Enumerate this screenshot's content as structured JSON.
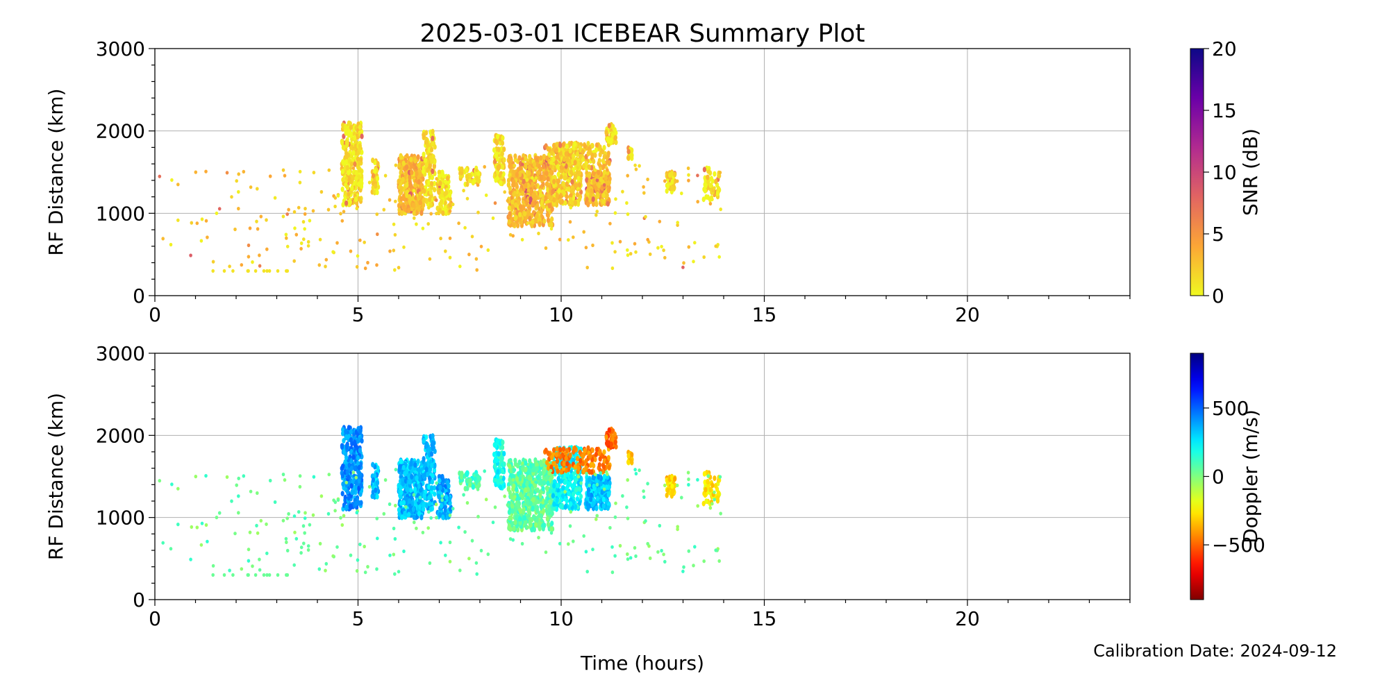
{
  "title": "2025-03-01 ICEBEAR Summary Plot",
  "footer": "Calibration Date: 2024-09-12",
  "chart_data": [
    {
      "type": "scatter",
      "panel": "snr",
      "title": "2025-03-01 ICEBEAR Summary Plot",
      "xlabel": "",
      "ylabel": "RF Distance (km)",
      "xlim": [
        0,
        24
      ],
      "ylim": [
        0,
        3000
      ],
      "xticks": [
        "0",
        "5",
        "10",
        "15",
        "20"
      ],
      "yticks": [
        "0",
        "1000",
        "2000",
        "3000"
      ],
      "grid": true,
      "colorbar": {
        "label": "SNR (dB)",
        "range": [
          0,
          20
        ],
        "ticks": [
          "0",
          "5",
          "10",
          "15",
          "20"
        ],
        "colormap": "plasma_r"
      }
    },
    {
      "type": "scatter",
      "panel": "doppler",
      "xlabel": "Time (hours)",
      "ylabel": "RF Distance (km)",
      "xlim": [
        0,
        24
      ],
      "ylim": [
        0,
        3000
      ],
      "xticks": [
        "0",
        "5",
        "10",
        "15",
        "20"
      ],
      "yticks": [
        "0",
        "1000",
        "2000",
        "3000"
      ],
      "grid": true,
      "colorbar": {
        "label": "Doppler (m/s)",
        "range": [
          -900,
          900
        ],
        "ticks": [
          "−500",
          "0",
          "500"
        ],
        "tick_values": [
          -500,
          0,
          500
        ],
        "colormap": "jet_r"
      }
    }
  ],
  "clusters": [
    {
      "t": [
        4.6,
        5.1
      ],
      "r": [
        1100,
        2100
      ],
      "n": 260,
      "snr": 1,
      "doppler": 420
    },
    {
      "t": [
        5.35,
        5.5
      ],
      "r": [
        1250,
        1650
      ],
      "n": 40,
      "snr": 1,
      "doppler": 330
    },
    {
      "t": [
        6.0,
        6.6
      ],
      "r": [
        1000,
        1700
      ],
      "n": 320,
      "snr": 3,
      "doppler": 330
    },
    {
      "t": [
        6.6,
        6.9
      ],
      "r": [
        1100,
        2000
      ],
      "n": 120,
      "snr": 1,
      "doppler": 330
    },
    {
      "t": [
        6.95,
        7.3
      ],
      "r": [
        1000,
        1500
      ],
      "n": 90,
      "snr": 1,
      "doppler": 380
    },
    {
      "t": [
        7.5,
        8.0
      ],
      "r": [
        1350,
        1550
      ],
      "n": 50,
      "snr": 1,
      "doppler": 100
    },
    {
      "t": [
        8.35,
        8.6
      ],
      "r": [
        1350,
        1950
      ],
      "n": 80,
      "snr": 1,
      "doppler": 200
    },
    {
      "t": [
        8.7,
        9.8
      ],
      "r": [
        850,
        1700
      ],
      "n": 520,
      "snr": 3,
      "doppler": 60
    },
    {
      "t": [
        9.8,
        10.5
      ],
      "r": [
        1100,
        1850
      ],
      "n": 280,
      "snr": 2,
      "doppler": 230
    },
    {
      "t": [
        10.6,
        11.2
      ],
      "r": [
        1100,
        1500
      ],
      "n": 220,
      "snr": 3,
      "doppler": 330
    },
    {
      "t": [
        9.6,
        11.2
      ],
      "r": [
        1550,
        1850
      ],
      "n": 140,
      "snr": 2,
      "doppler": -450
    },
    {
      "t": [
        11.1,
        11.35
      ],
      "r": [
        1850,
        2100
      ],
      "n": 40,
      "snr": 1,
      "doppler": -500
    },
    {
      "t": [
        12.6,
        12.8
      ],
      "r": [
        1250,
        1500
      ],
      "n": 40,
      "snr": 1,
      "doppler": -300
    },
    {
      "t": [
        13.5,
        13.9
      ],
      "r": [
        1150,
        1550
      ],
      "n": 50,
      "snr": 1,
      "doppler": -250
    },
    {
      "t": [
        11.65,
        11.75
      ],
      "r": [
        1650,
        1800
      ],
      "n": 12,
      "snr": 1,
      "doppler": -300
    }
  ],
  "scatter_background": {
    "t": [
      0,
      14
    ],
    "r": [
      300,
      1600
    ],
    "n": 260,
    "snr": 2,
    "doppler": 40
  }
}
